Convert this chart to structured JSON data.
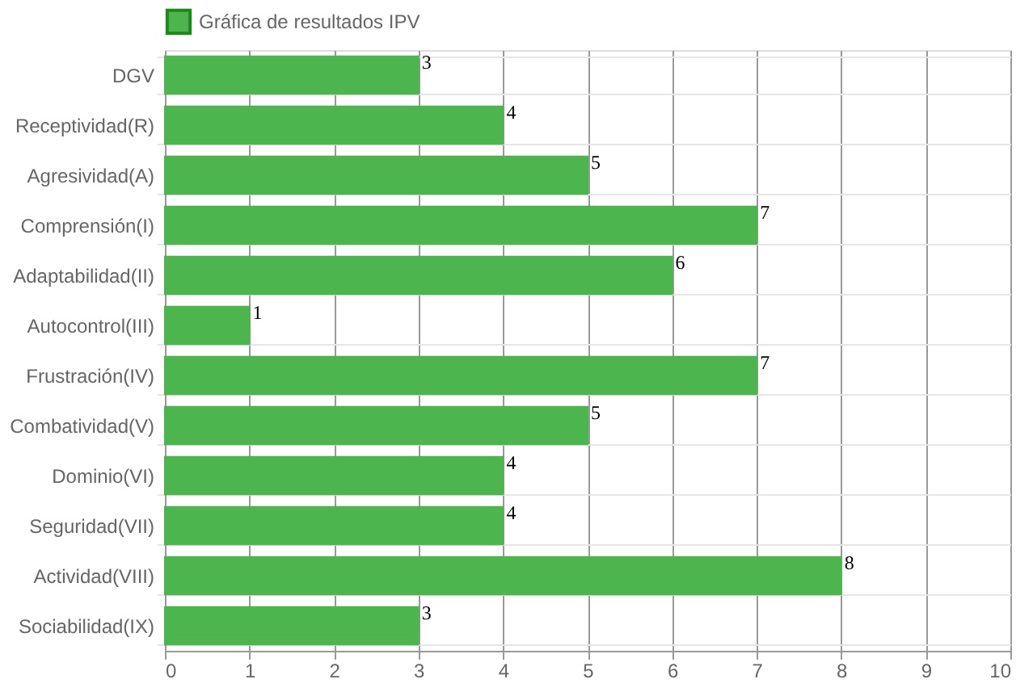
{
  "chart_data": {
    "type": "bar",
    "orientation": "horizontal",
    "categories": [
      "DGV",
      "Receptividad(R)",
      "Agresividad(A)",
      "Comprensión(I)",
      "Adaptabilidad(II)",
      "Autocontrol(III)",
      "Frustración(IV)",
      "Combatividad(V)",
      "Dominio(VI)",
      "Seguridad(VII)",
      "Actividad(VIII)",
      "Sociabilidad(IX)"
    ],
    "series": [
      {
        "name": "Gráfica de resultados IPV",
        "color": "#4db54d",
        "values": [
          3,
          4,
          5,
          7,
          6,
          1,
          7,
          5,
          4,
          4,
          8,
          3
        ]
      }
    ],
    "xlim": [
      0,
      10
    ],
    "xticks": [
      0,
      1,
      2,
      3,
      4,
      5,
      6,
      7,
      8,
      9,
      10
    ],
    "grid": true,
    "legend": "top",
    "data_labels": true
  }
}
